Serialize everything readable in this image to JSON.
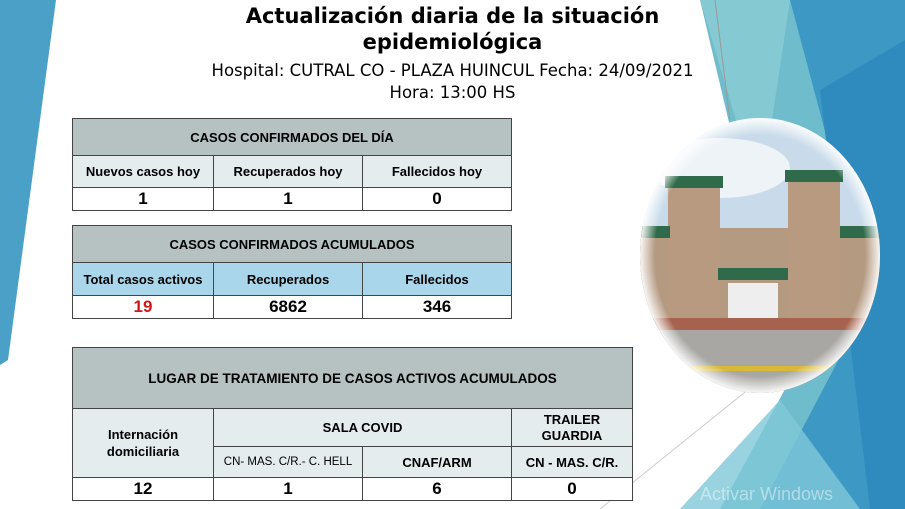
{
  "header": {
    "title": "Actualización diaria de la situación epidemiológica",
    "hospital_line": "Hospital: CUTRAL CO - PLAZA HUINCUL Fecha: 24/09/2021",
    "time_line": "Hora: 13:00 HS"
  },
  "daily": {
    "title": "CASOS CONFIRMADOS DEL DÍA",
    "headers": [
      "Nuevos casos hoy",
      "Recuperados hoy",
      "Fallecidos hoy"
    ],
    "values": [
      "1",
      "1",
      "0"
    ]
  },
  "cumulative": {
    "title": "CASOS CONFIRMADOS ACUMULADOS",
    "headers": [
      "Total casos activos",
      "Recuperados",
      "Fallecidos"
    ],
    "values": [
      "19",
      "6862",
      "346"
    ]
  },
  "treatment": {
    "title": "LUGAR DE TRATAMIENTO DE CASOS ACTIVOS ACUMULADOS",
    "home": "Internación domiciliaria",
    "sala": "SALA COVID",
    "trailer": "TRAILER GUARDIA",
    "sub": [
      "CN- MAS. C/R.- C. HELL",
      "CNAF/ARM",
      "CN - MAS. C/R."
    ],
    "values": [
      "12",
      "1",
      "6",
      "0"
    ]
  },
  "photo": {
    "icon": "hospital-building-photo"
  },
  "watermark": "Activar Windows",
  "colors": {
    "header_gray": "#b6c2c2",
    "light_blue": "#a9d6ea",
    "accent_blue": "#3f9fc7",
    "active_red": "#d01818"
  }
}
